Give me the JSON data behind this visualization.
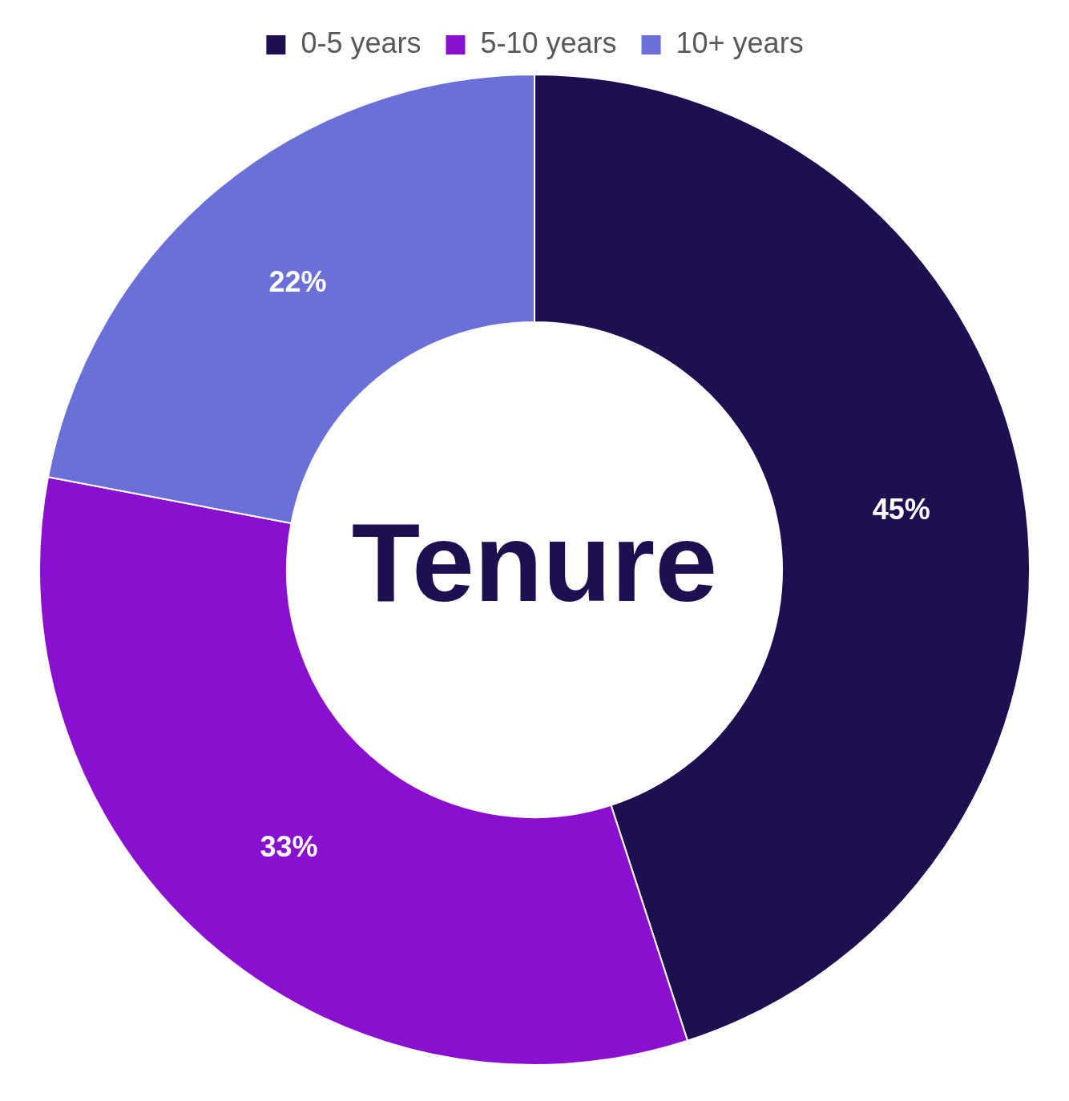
{
  "chart_data": {
    "type": "donut",
    "title": "Tenure",
    "categories": [
      "0-5 years",
      "5-10 years",
      "10+ years"
    ],
    "values": [
      45,
      33,
      22
    ],
    "colors": [
      "#1e1050",
      "#8a10d0",
      "#6a70d8"
    ],
    "value_labels": [
      "45%",
      "33%",
      "22%"
    ],
    "legend": "top"
  }
}
